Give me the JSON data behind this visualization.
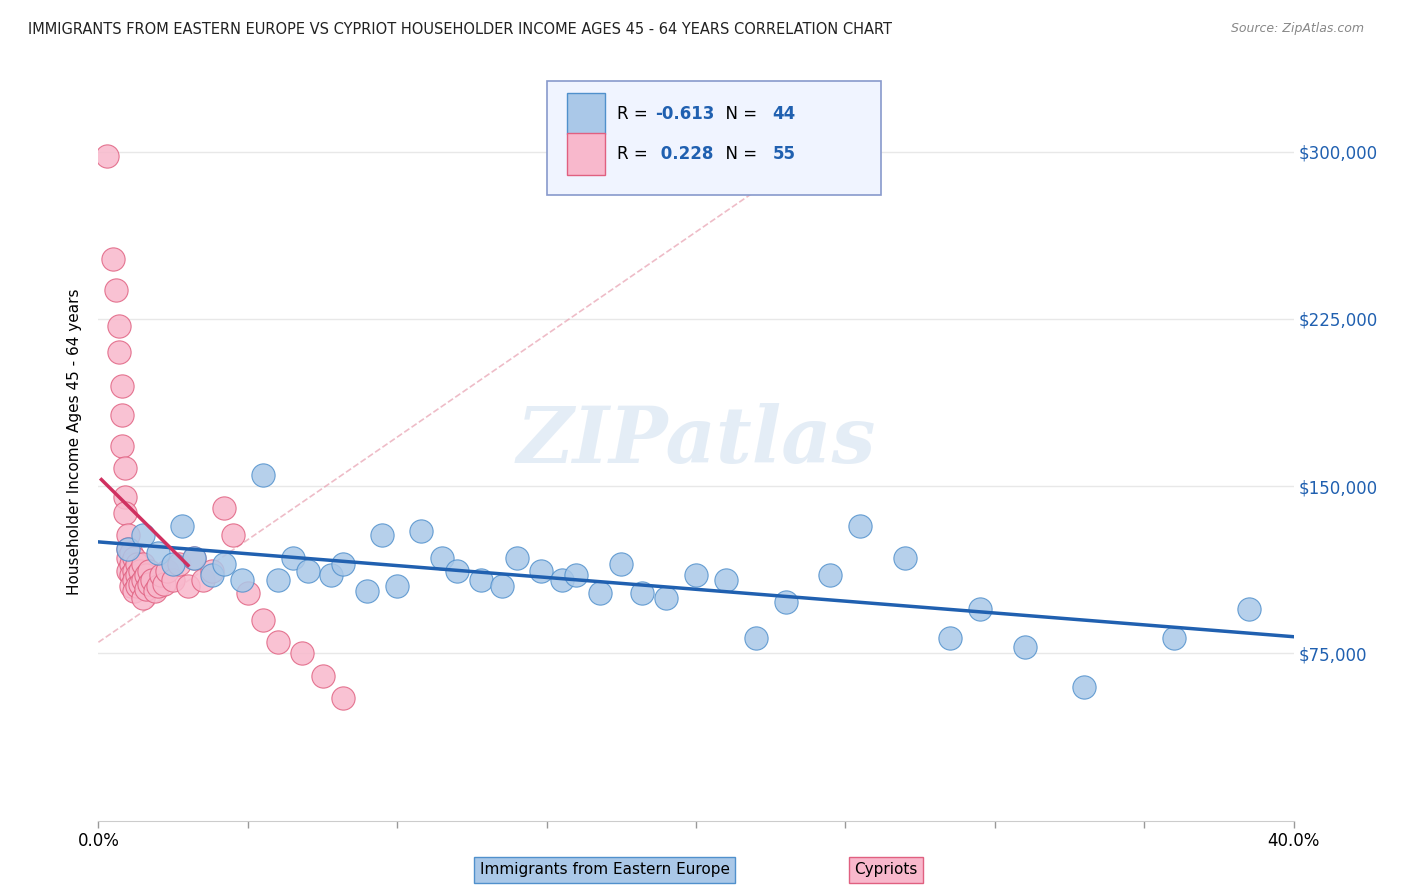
{
  "title": "IMMIGRANTS FROM EASTERN EUROPE VS CYPRIOT HOUSEHOLDER INCOME AGES 45 - 64 YEARS CORRELATION CHART",
  "source": "Source: ZipAtlas.com",
  "ylabel": "Householder Income Ages 45 - 64 years",
  "watermark": "ZIPatlas",
  "legend_blue_label": "Immigrants from Eastern Europe",
  "legend_pink_label": "Cypriots",
  "R_blue": -0.613,
  "N_blue": 44,
  "R_pink": 0.228,
  "N_pink": 55,
  "xlim": [
    0.0,
    0.4
  ],
  "ylim": [
    0,
    340000
  ],
  "yticks": [
    0,
    75000,
    150000,
    225000,
    300000
  ],
  "xticks": [
    0.0,
    0.05,
    0.1,
    0.15,
    0.2,
    0.25,
    0.3,
    0.35,
    0.4
  ],
  "blue_scatter_x": [
    0.01,
    0.015,
    0.02,
    0.025,
    0.028,
    0.032,
    0.038,
    0.042,
    0.048,
    0.055,
    0.06,
    0.065,
    0.07,
    0.078,
    0.082,
    0.09,
    0.095,
    0.1,
    0.108,
    0.115,
    0.12,
    0.128,
    0.135,
    0.14,
    0.148,
    0.155,
    0.16,
    0.168,
    0.175,
    0.182,
    0.19,
    0.2,
    0.21,
    0.22,
    0.23,
    0.245,
    0.255,
    0.27,
    0.285,
    0.295,
    0.31,
    0.33,
    0.36,
    0.385
  ],
  "blue_scatter_y": [
    122000,
    128000,
    120000,
    115000,
    132000,
    118000,
    110000,
    115000,
    108000,
    155000,
    108000,
    118000,
    112000,
    110000,
    115000,
    103000,
    128000,
    105000,
    130000,
    118000,
    112000,
    108000,
    105000,
    118000,
    112000,
    108000,
    110000,
    102000,
    115000,
    102000,
    100000,
    110000,
    108000,
    82000,
    98000,
    110000,
    132000,
    118000,
    82000,
    95000,
    78000,
    60000,
    82000,
    95000
  ],
  "pink_scatter_x": [
    0.003,
    0.005,
    0.006,
    0.007,
    0.007,
    0.008,
    0.008,
    0.008,
    0.009,
    0.009,
    0.009,
    0.01,
    0.01,
    0.01,
    0.01,
    0.011,
    0.011,
    0.011,
    0.011,
    0.012,
    0.012,
    0.012,
    0.012,
    0.013,
    0.013,
    0.013,
    0.014,
    0.014,
    0.015,
    0.015,
    0.015,
    0.016,
    0.016,
    0.017,
    0.017,
    0.018,
    0.019,
    0.02,
    0.021,
    0.022,
    0.023,
    0.025,
    0.027,
    0.03,
    0.032,
    0.035,
    0.038,
    0.042,
    0.045,
    0.05,
    0.055,
    0.06,
    0.068,
    0.075,
    0.082
  ],
  "pink_scatter_y": [
    298000,
    252000,
    238000,
    222000,
    210000,
    195000,
    182000,
    168000,
    158000,
    145000,
    138000,
    128000,
    122000,
    118000,
    112000,
    120000,
    115000,
    110000,
    105000,
    118000,
    112000,
    108000,
    103000,
    115000,
    110000,
    105000,
    112000,
    106000,
    115000,
    108000,
    100000,
    110000,
    104000,
    112000,
    106000,
    108000,
    103000,
    105000,
    110000,
    106000,
    112000,
    108000,
    115000,
    105000,
    118000,
    108000,
    112000,
    140000,
    128000,
    102000,
    90000,
    80000,
    75000,
    65000,
    55000
  ],
  "blue_color": "#aac8e8",
  "blue_edge_color": "#5090cc",
  "blue_line_color": "#2060b0",
  "pink_color": "#f8b8cc",
  "pink_edge_color": "#e06080",
  "pink_line_color": "#d03060",
  "diagonal_color": "#e8a0b0",
  "grid_color": "#e8e8e8",
  "title_color": "#222222",
  "source_color": "#888888",
  "ytick_color": "#2060b0",
  "legend_bg": "#f0f4ff",
  "legend_border": "#8899cc"
}
